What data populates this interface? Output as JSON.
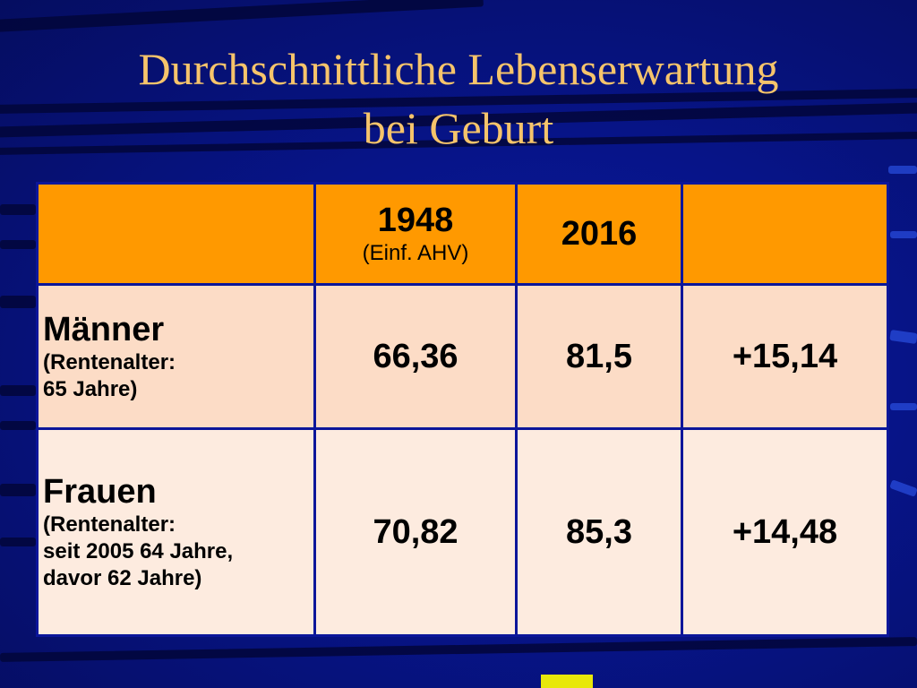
{
  "title": [
    "Durchschnittliche Lebenserwartung",
    "bei Geburt"
  ],
  "table": {
    "header": {
      "col1_year": "1948",
      "col1_note": "(Einf. AHV)",
      "col2_year": "2016",
      "col3": ""
    },
    "rows": [
      {
        "label": "Männer",
        "note_lines": [
          "(Rentenalter:",
          "65 Jahre)"
        ],
        "v1948": "66,36",
        "v2016": "81,5",
        "diff": "+15,14"
      },
      {
        "label": "Frauen",
        "note_lines": [
          "(Rentenalter:",
          "seit 2005 64 Jahre,",
          "davor 62 Jahre)"
        ],
        "v1948": "70,82",
        "v2016": "85,3",
        "diff": "+14,48"
      }
    ]
  },
  "colors": {
    "background": "#071488",
    "title": "#f6c46b",
    "header": "#ff9900",
    "row1": "#fcdcc6",
    "row2": "#fdebdf",
    "accent": "#e8e80a"
  }
}
